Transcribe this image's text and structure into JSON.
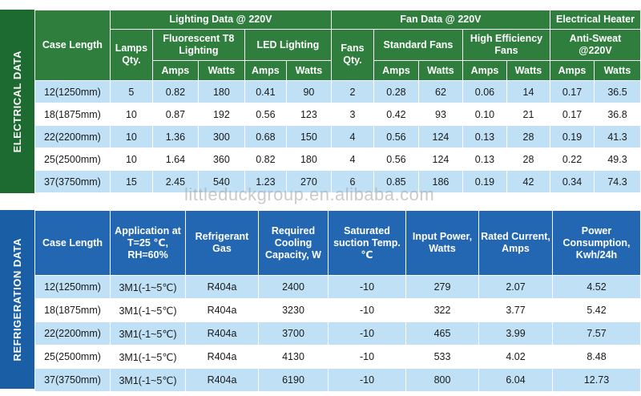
{
  "electrical": {
    "side_label": "ELECTRICAL DATA",
    "case_length_header": "Case Length",
    "lighting_group": "Lighting Data @ 220V",
    "fan_group": "Fan Data @ 220V",
    "heater_group": "Electrical Heater",
    "lamps_qty": "Lamps Qty.",
    "fluorescent": "Fluorescent T8 Lighting",
    "led": "LED Lighting",
    "fans_qty": "Fans Qty.",
    "standard_fans": "Standard Fans",
    "high_eff_fans": "High Efficiency Fans",
    "anti_sweat": "Anti-Sweat @220V",
    "amps": "Amps",
    "watts": "Watts",
    "rows": [
      [
        "12(1250mm)",
        "5",
        "0.82",
        "180",
        "0.41",
        "90",
        "2",
        "0.28",
        "62",
        "0.06",
        "14",
        "0.17",
        "36.5"
      ],
      [
        "18(1875mm)",
        "10",
        "0.87",
        "192",
        "0.56",
        "123",
        "3",
        "0.42",
        "93",
        "0.10",
        "21",
        "0.17",
        "36.8"
      ],
      [
        "22(2200mm)",
        "10",
        "1.36",
        "300",
        "0.68",
        "150",
        "4",
        "0.56",
        "124",
        "0.13",
        "28",
        "0.19",
        "41.3"
      ],
      [
        "25(2500mm)",
        "10",
        "1.64",
        "360",
        "0.82",
        "180",
        "4",
        "0.56",
        "124",
        "0.13",
        "28",
        "0.22",
        "49.3"
      ],
      [
        "37(3750mm)",
        "15",
        "2.45",
        "540",
        "1.23",
        "270",
        "6",
        "0.85",
        "186",
        "0.19",
        "42",
        "0.34",
        "74.3"
      ]
    ]
  },
  "refrigeration": {
    "side_label": "REFRIGERATION DATA",
    "headers": [
      "Case Length",
      "Application at T=25 ℃, RH=60%",
      "Refrigerant Gas",
      "Required Cooling Capacity, W",
      "Saturated suction Temp. ℃",
      "Input Power, Watts",
      "Rated Current, Amps",
      "Power Consumption, Kwh/24h"
    ],
    "rows": [
      [
        "12(1250mm)",
        "3M1(-1~5℃)",
        "R404a",
        "2400",
        "-10",
        "279",
        "2.07",
        "4.52"
      ],
      [
        "18(1875mm)",
        "3M1(-1~5℃)",
        "R404a",
        "3230",
        "-10",
        "322",
        "3.77",
        "5.42"
      ],
      [
        "22(2200mm)",
        "3M1(-1~5℃)",
        "R404a",
        "3700",
        "-10",
        "465",
        "3.99",
        "7.57"
      ],
      [
        "25(2500mm)",
        "3M1(-1~5℃)",
        "R404a",
        "4130",
        "-10",
        "533",
        "4.02",
        "8.48"
      ],
      [
        "37(3750mm)",
        "3M1(-1~5℃)",
        "R404a",
        "6190",
        "-10",
        "800",
        "6.04",
        "12.73"
      ]
    ]
  },
  "watermark": "littleduckgroup.en.alibaba.com"
}
